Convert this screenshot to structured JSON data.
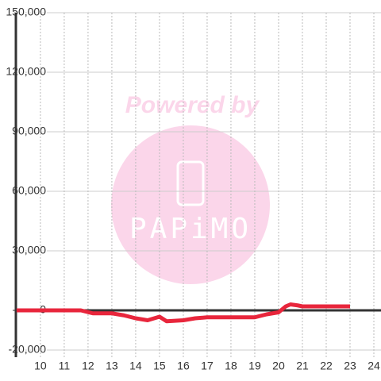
{
  "chart_data": {
    "type": "line",
    "watermark": [
      "Powered by",
      "PAPiMO"
    ],
    "x": [
      9,
      10.5,
      11.7,
      12.2,
      13,
      13.5,
      14,
      14.5,
      15,
      15.3,
      16,
      16.5,
      17,
      18,
      19,
      19.5,
      20,
      20.3,
      20.5,
      20.8,
      21,
      22,
      23
    ],
    "series": [
      {
        "color": "#e8263c",
        "values": [
          0,
          0,
          0,
          -1500,
          -1500,
          -2500,
          -4000,
          -5000,
          -3200,
          -5500,
          -5000,
          -4000,
          -3500,
          -3500,
          -3500,
          -2000,
          -1000,
          2000,
          3000,
          2500,
          2000,
          2000,
          2000
        ]
      }
    ],
    "xlim": [
      8.97,
      24.3
    ],
    "xticks": [
      10,
      11,
      12,
      13,
      14,
      15,
      16,
      17,
      18,
      19,
      20,
      21,
      22,
      23,
      24
    ],
    "ylim": [
      -20000,
      150000
    ],
    "yticks": [
      {
        "value": -20000,
        "label": "-20,000"
      },
      0,
      {
        "value": 30000,
        "label": "30,000"
      },
      {
        "value": 60000,
        "label": "60,000"
      },
      {
        "value": 90000,
        "label": "90,000"
      },
      {
        "value": 120000,
        "label": "120,000"
      },
      {
        "value": 150000,
        "label": "150,000"
      }
    ],
    "grid": true
  }
}
